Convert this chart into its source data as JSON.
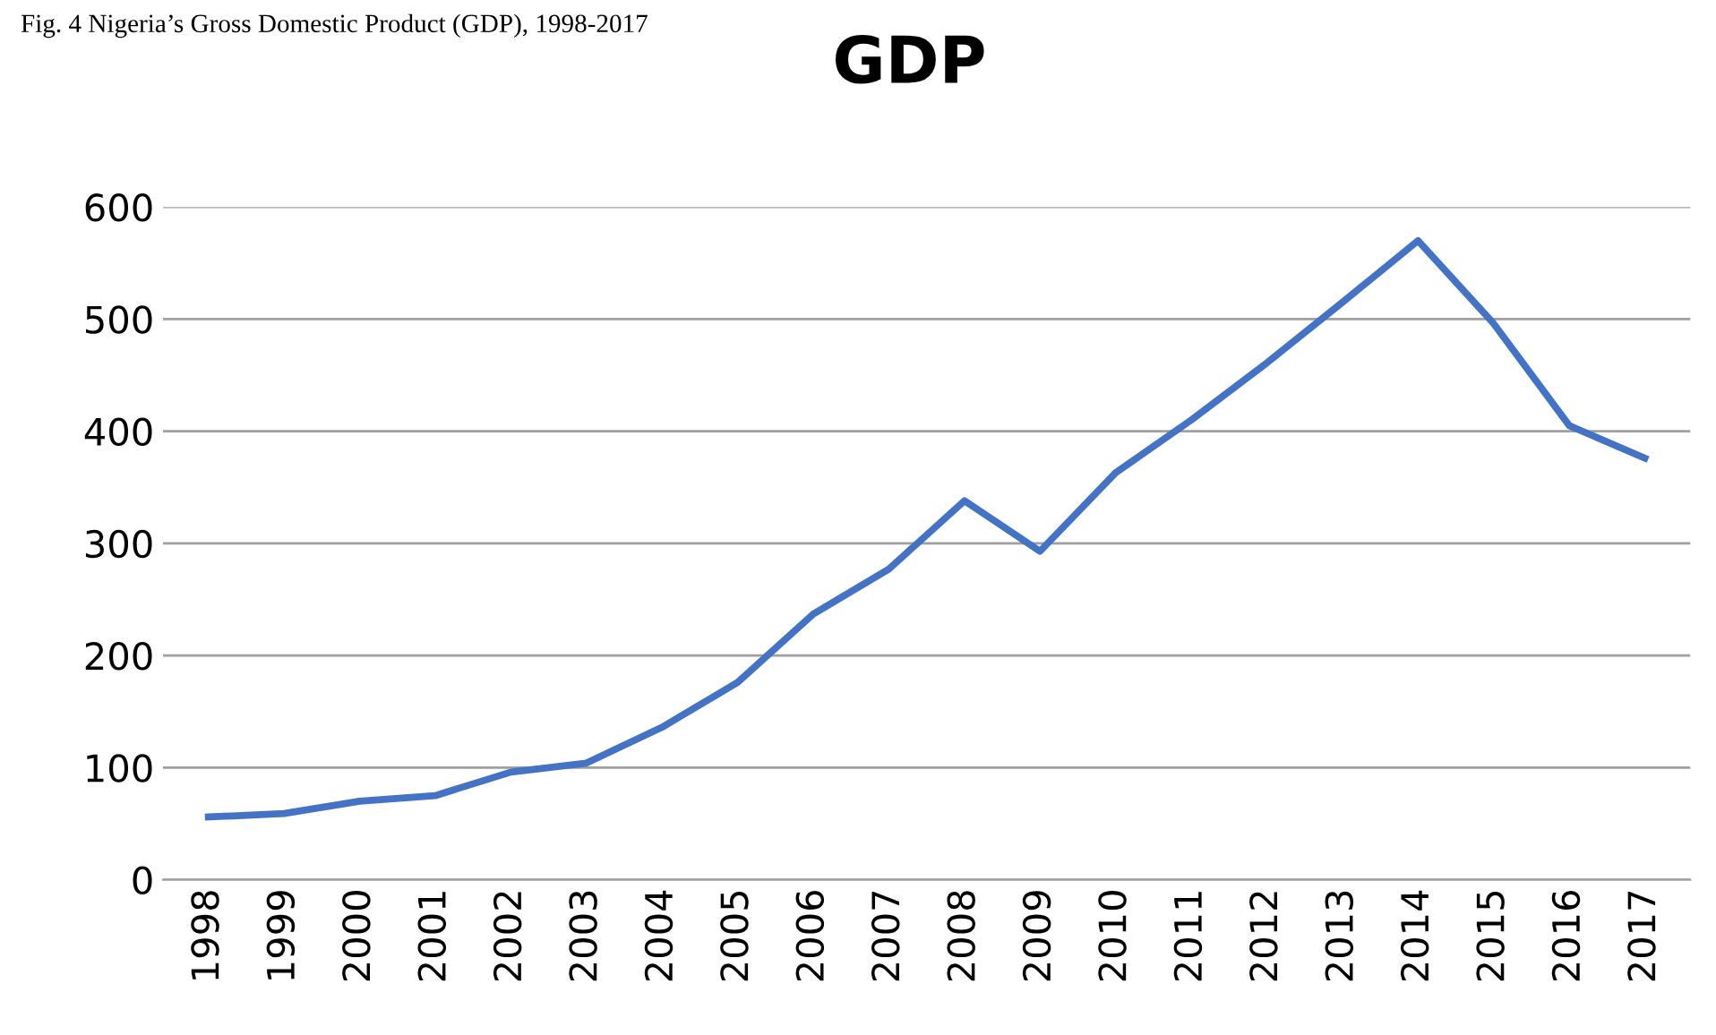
{
  "chart_data": {
    "type": "line",
    "title": "GDP",
    "annotations": [
      "Fig. 4 Nigeria’s Gross Domestic Product (GDP), 1998-2017"
    ],
    "categories": [
      "1998",
      "1999",
      "2000",
      "2001",
      "2002",
      "2003",
      "2004",
      "2005",
      "2006",
      "2007",
      "2008",
      "2009",
      "2010",
      "2011",
      "2012",
      "2013",
      "2014",
      "2015",
      "2016",
      "2017"
    ],
    "series": [
      {
        "color": "#4472c4",
        "values": [
          56,
          59,
          70,
          75,
          96,
          104,
          136,
          176,
          237,
          277,
          338,
          293,
          363,
          410,
          461,
          515,
          570,
          496,
          405,
          376
        ]
      }
    ],
    "ylim": [
      0,
      600
    ],
    "yticks": [
      0,
      100,
      200,
      300,
      400,
      500,
      600
    ],
    "grid": "y",
    "marker": "none",
    "line_style": "solid"
  }
}
